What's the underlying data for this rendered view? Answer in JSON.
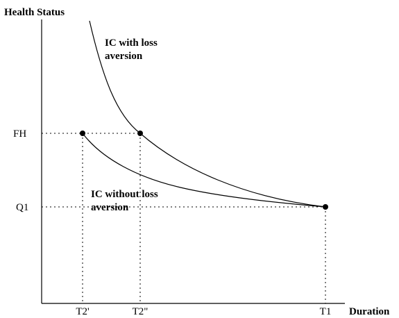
{
  "axes": {
    "y_title": "Health Status",
    "x_title": "Duration"
  },
  "y_ticks": {
    "fh": "FH",
    "q1": "Q1"
  },
  "x_ticks": {
    "t2_prime": "T2'",
    "t2_double_prime": "T2\"",
    "t1": "T1"
  },
  "curves": {
    "with_loss": {
      "label_line1": "IC with loss",
      "label_line2": "aversion"
    },
    "without_loss": {
      "label_line1": "IC without loss",
      "label_line2": "aversion"
    }
  }
}
